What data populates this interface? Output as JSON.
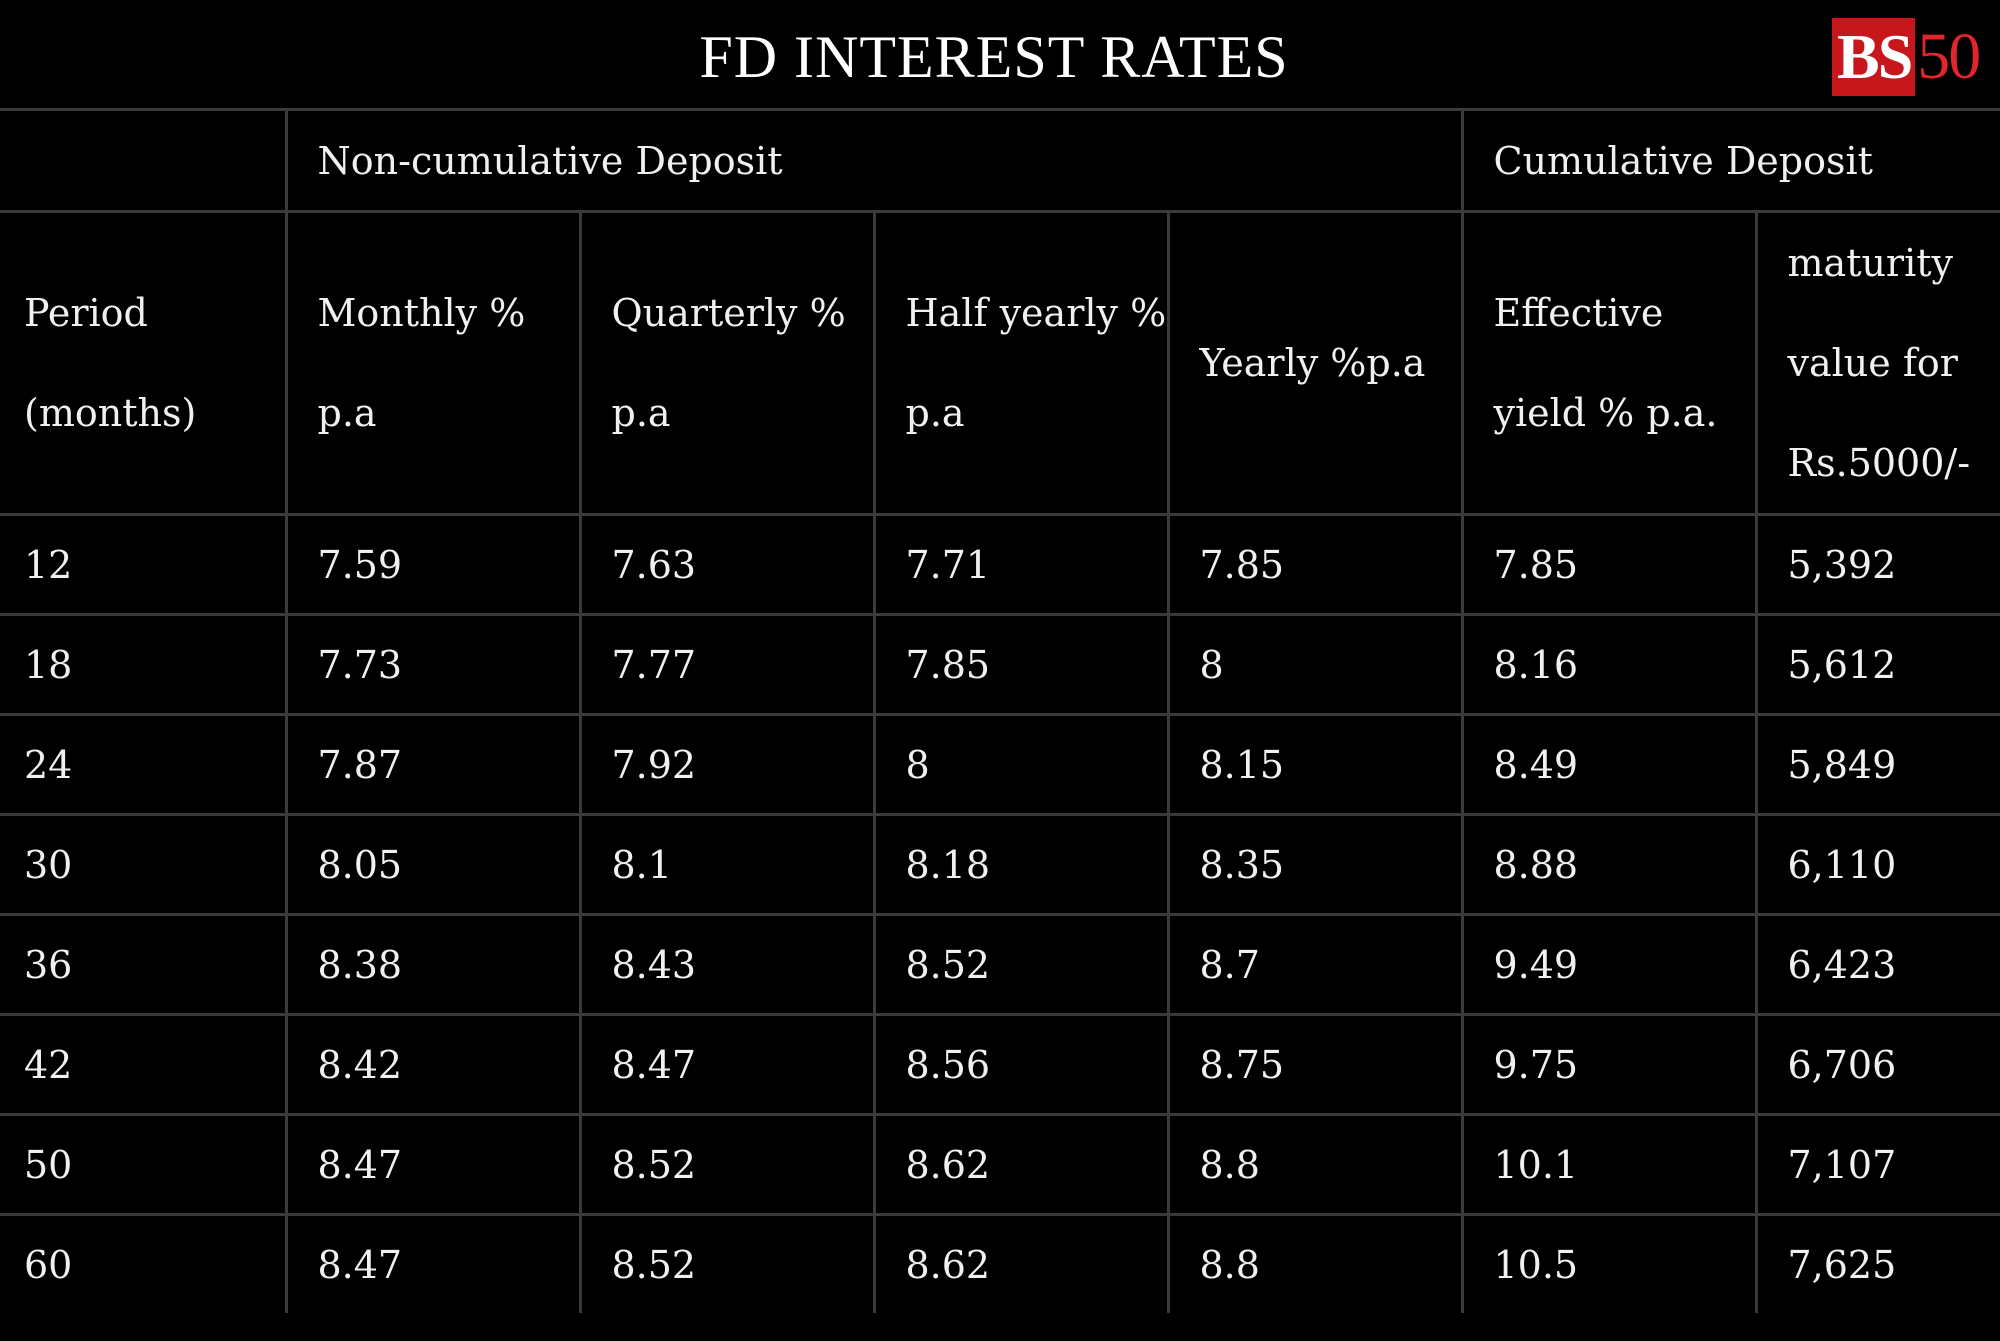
{
  "header": {
    "title": "FD INTEREST RATES",
    "logo_bs": "BS",
    "logo_num": "50",
    "logo_bg_color": "#c8161d"
  },
  "chart_data": {
    "type": "table",
    "title": "FD INTEREST RATES",
    "group_headers": [
      {
        "label": "",
        "span": 1
      },
      {
        "label": "Non-cumulative Deposit",
        "span": 4
      },
      {
        "label": "Cumulative Deposit",
        "span": 2
      }
    ],
    "columns": [
      {
        "line1": "Period",
        "line2": "(months)",
        "line3": ""
      },
      {
        "line1": "Monthly %",
        "line2": "p.a",
        "line3": ""
      },
      {
        "line1": "Quarterly %",
        "line2": "p.a",
        "line3": ""
      },
      {
        "line1": "Half yearly %",
        "line2": "p.a",
        "line3": ""
      },
      {
        "line1": "Yearly %p.a",
        "line2": "",
        "line3": ""
      },
      {
        "line1": "Effective",
        "line2": "yield % p.a.",
        "line3": ""
      },
      {
        "line1": "maturity",
        "line2": "value for",
        "line3": "Rs.5000/-"
      }
    ],
    "rows": [
      [
        "12",
        "7.59",
        "7.63",
        "7.71",
        "7.85",
        "7.85",
        "5,392"
      ],
      [
        "18",
        "7.73",
        "7.77",
        "7.85",
        "8",
        "8.16",
        "5,612"
      ],
      [
        "24",
        "7.87",
        "7.92",
        "8",
        "8.15",
        "8.49",
        "5,849"
      ],
      [
        "30",
        "8.05",
        "8.1",
        "8.18",
        "8.35",
        "8.88",
        "6,110"
      ],
      [
        "36",
        "8.38",
        "8.43",
        "8.52",
        "8.7",
        "9.49",
        "6,423"
      ],
      [
        "42",
        "8.42",
        "8.47",
        "8.56",
        "8.75",
        "9.75",
        "6,706"
      ],
      [
        "50",
        "8.47",
        "8.52",
        "8.62",
        "8.8",
        "10.1",
        "7,107"
      ],
      [
        "60",
        "8.47",
        "8.52",
        "8.62",
        "8.8",
        "10.5",
        "7,625"
      ]
    ]
  }
}
